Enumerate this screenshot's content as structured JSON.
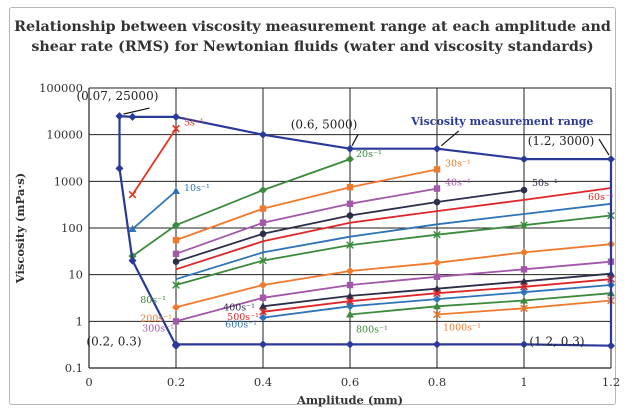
{
  "title_line1": "Relationship between viscosity measurement range at each amplitude and",
  "title_line2": "shear rate (RMS) for Newtonian fluids (water and viscosity standards)",
  "chart_data": {
    "type": "line",
    "xlabel": "Amplitude (mm)",
    "ylabel": "Viscosity (mPa·s)",
    "xlim": [
      0,
      1.2
    ],
    "ylim": [
      0.1,
      100000
    ],
    "y_scale": "log",
    "x_ticks": [
      "0",
      "0.2",
      "0.4",
      "0.6",
      "0.8",
      "1",
      "1.2"
    ],
    "y_ticks": [
      "0.1",
      "1",
      "10",
      "100",
      "1000",
      "10000",
      "100000"
    ],
    "grid": true,
    "range_boundary": {
      "name": "Viscosity measurement range",
      "color": "#2b3a99",
      "points": [
        [
          0.2,
          0.3
        ],
        [
          0.2,
          0.32
        ],
        [
          0.4,
          0.32
        ],
        [
          0.6,
          0.32
        ],
        [
          0.8,
          0.32
        ],
        [
          1.0,
          0.32
        ],
        [
          1.2,
          0.3
        ],
        [
          1.2,
          3000
        ],
        [
          1.0,
          3000
        ],
        [
          0.8,
          5000
        ],
        [
          0.6,
          5000
        ],
        [
          0.4,
          10000
        ],
        [
          0.2,
          24000
        ],
        [
          0.1,
          24000
        ],
        [
          0.07,
          25000
        ],
        [
          0.07,
          1900
        ],
        [
          0.1,
          20
        ],
        [
          0.2,
          0.3
        ]
      ]
    },
    "annotations": [
      {
        "text": "(0.07, 25000)",
        "x": 0.07,
        "y": 25000
      },
      {
        "text": "(0.6, 5000)",
        "x": 0.6,
        "y": 5000
      },
      {
        "text": "(1.2, 3000)",
        "x": 1.2,
        "y": 3000
      },
      {
        "text": "(0.2, 0.3)",
        "x": 0.2,
        "y": 0.3
      },
      {
        "text": "(1.2, 0.3)",
        "x": 1.2,
        "y": 0.3
      }
    ],
    "series": [
      {
        "name": "5s⁻¹",
        "color": "#e8331e",
        "x": [
          0.1,
          0.2
        ],
        "y": [
          520,
          13500
        ]
      },
      {
        "name": "10s⁻¹",
        "color": "#2f73b8",
        "x": [
          0.1,
          0.2
        ],
        "y": [
          95,
          620
        ]
      },
      {
        "name": "20s⁻¹",
        "color": "#3c8a3c",
        "x": [
          0.1,
          0.2,
          0.4,
          0.6
        ],
        "y": [
          25,
          115,
          650,
          3000
        ]
      },
      {
        "name": "30s⁻¹",
        "color": "#ef7a2e",
        "x": [
          0.2,
          0.4,
          0.6,
          0.8
        ],
        "y": [
          55,
          260,
          750,
          1800
        ]
      },
      {
        "name": "40s⁻¹",
        "color": "#a257a8",
        "x": [
          0.2,
          0.4,
          0.6,
          0.8
        ],
        "y": [
          28,
          130,
          330,
          700
        ]
      },
      {
        "name": "50s⁻¹",
        "color": "#2d2f4a",
        "x": [
          0.2,
          0.4,
          0.6,
          0.8,
          1.0
        ],
        "y": [
          19,
          75,
          185,
          360,
          650
        ]
      },
      {
        "name": "60s⁻¹",
        "color": "#e0262a",
        "x": [
          0.2,
          0.4,
          0.6,
          0.8,
          1.0,
          1.2
        ],
        "y": [
          13,
          52,
          130,
          230,
          400,
          720
        ]
      },
      {
        "name": "",
        "color": "#2f73b8",
        "x": [
          0.2,
          0.4,
          0.6,
          0.8,
          1.0,
          1.2
        ],
        "y": [
          8,
          30,
          65,
          120,
          200,
          330
        ]
      },
      {
        "name": "80s⁻¹",
        "color": "#3c8a3c",
        "x": [
          0.2,
          0.4,
          0.6,
          0.8,
          1.0,
          1.2
        ],
        "y": [
          6,
          20,
          43,
          72,
          115,
          185
        ]
      },
      {
        "name": "200s⁻¹",
        "color": "#ef7a2e",
        "x": [
          0.2,
          0.4,
          0.6,
          0.8,
          1.0,
          1.2
        ],
        "y": [
          2,
          6,
          12,
          18,
          30,
          45
        ]
      },
      {
        "name": "300s⁻¹",
        "color": "#a257a8",
        "x": [
          0.2,
          0.4,
          0.6,
          0.8,
          1.0,
          1.2
        ],
        "y": [
          1,
          3.2,
          6,
          9,
          13,
          19
        ]
      },
      {
        "name": "400s⁻¹",
        "color": "#2d2f4a",
        "x": [
          0.4,
          0.6,
          0.8,
          1.0,
          1.2
        ],
        "y": [
          2.1,
          3.5,
          5,
          7.2,
          10.5
        ]
      },
      {
        "name": "500s⁻¹",
        "color": "#e0262a",
        "x": [
          0.4,
          0.6,
          0.8,
          1.0,
          1.2
        ],
        "y": [
          1.6,
          2.7,
          4,
          5.5,
          8
        ]
      },
      {
        "name": "600s⁻¹",
        "color": "#2f73b8",
        "x": [
          0.4,
          0.6,
          0.8,
          1.0,
          1.2
        ],
        "y": [
          1.2,
          2.1,
          3,
          4.2,
          6
        ]
      },
      {
        "name": "800s⁻¹",
        "color": "#3c8a3c",
        "x": [
          0.6,
          0.8,
          1.0,
          1.2
        ],
        "y": [
          1.4,
          2.1,
          2.8,
          4
        ]
      },
      {
        "name": "1000s⁻¹",
        "color": "#ef7a2e",
        "x": [
          0.8,
          1.0,
          1.2
        ],
        "y": [
          1.4,
          1.9,
          2.8
        ]
      }
    ],
    "region_label": "Viscosity measurement range"
  }
}
